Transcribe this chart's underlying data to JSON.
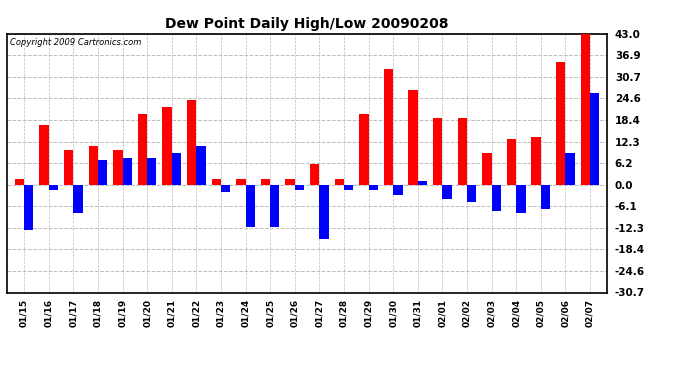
{
  "title": "Dew Point Daily High/Low 20090208",
  "copyright": "Copyright 2009 Cartronics.com",
  "background_color": "#ffffff",
  "bar_color_high": "#ff0000",
  "bar_color_low": "#0000ff",
  "ylim": [
    -30.7,
    43.0
  ],
  "yticks": [
    43.0,
    36.9,
    30.7,
    24.6,
    18.4,
    12.3,
    6.2,
    0.0,
    -6.1,
    -12.3,
    -18.4,
    -24.6,
    -30.7
  ],
  "dates": [
    "01/15",
    "01/16",
    "01/17",
    "01/18",
    "01/19",
    "01/20",
    "01/21",
    "01/22",
    "01/23",
    "01/24",
    "01/25",
    "01/26",
    "01/27",
    "01/28",
    "01/29",
    "01/30",
    "01/31",
    "02/01",
    "02/02",
    "02/03",
    "02/04",
    "02/05",
    "02/06",
    "02/07"
  ],
  "highs": [
    1.5,
    17.0,
    10.0,
    11.0,
    10.0,
    20.0,
    22.0,
    24.0,
    1.5,
    1.5,
    1.5,
    1.5,
    6.0,
    1.5,
    20.0,
    33.0,
    27.0,
    19.0,
    19.0,
    9.0,
    13.0,
    13.5,
    35.0,
    43.0
  ],
  "lows": [
    -13.0,
    -1.5,
    -8.0,
    7.0,
    7.5,
    7.5,
    9.0,
    11.0,
    -2.0,
    -12.0,
    -12.0,
    -1.5,
    -15.5,
    -1.5,
    -1.5,
    -3.0,
    1.0,
    -4.0,
    -5.0,
    -7.5,
    -8.0,
    -7.0,
    9.0,
    26.0
  ],
  "figsize": [
    6.9,
    3.75
  ],
  "dpi": 100,
  "title_fontsize": 10,
  "tick_fontsize": 7.5,
  "xtick_fontsize": 6.5,
  "grid_color": "#bbbbbb",
  "grid_linestyle": "--",
  "bar_width": 0.38
}
